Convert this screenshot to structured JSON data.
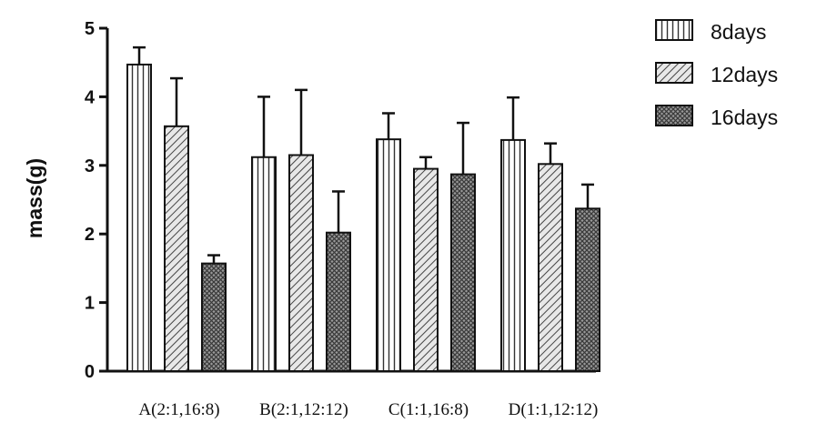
{
  "chart_data": {
    "type": "bar",
    "title": "",
    "xlabel": "",
    "ylabel": "mass(g)",
    "ylim": [
      0,
      5
    ],
    "yticks": [
      0,
      1,
      2,
      3,
      4,
      5
    ],
    "categories": [
      "A(2:1,16:8)",
      "B(2:1,12:12)",
      "C(1:1,16:8)",
      "D(1:1,12:12)"
    ],
    "series": [
      {
        "name": "8days",
        "pattern": "vertical-stripes",
        "values": [
          4.47,
          3.12,
          3.38,
          3.37
        ],
        "errors": [
          0.25,
          0.88,
          0.38,
          0.62
        ]
      },
      {
        "name": "12days",
        "pattern": "diagonal-hatch",
        "values": [
          3.57,
          3.15,
          2.95,
          3.02
        ],
        "errors": [
          0.7,
          0.95,
          0.17,
          0.3
        ]
      },
      {
        "name": "16days",
        "pattern": "crosshatch",
        "values": [
          1.57,
          2.02,
          2.87,
          2.37
        ],
        "errors": [
          0.12,
          0.6,
          0.75,
          0.35
        ]
      }
    ],
    "legend_position": "top-right",
    "grid": false
  }
}
